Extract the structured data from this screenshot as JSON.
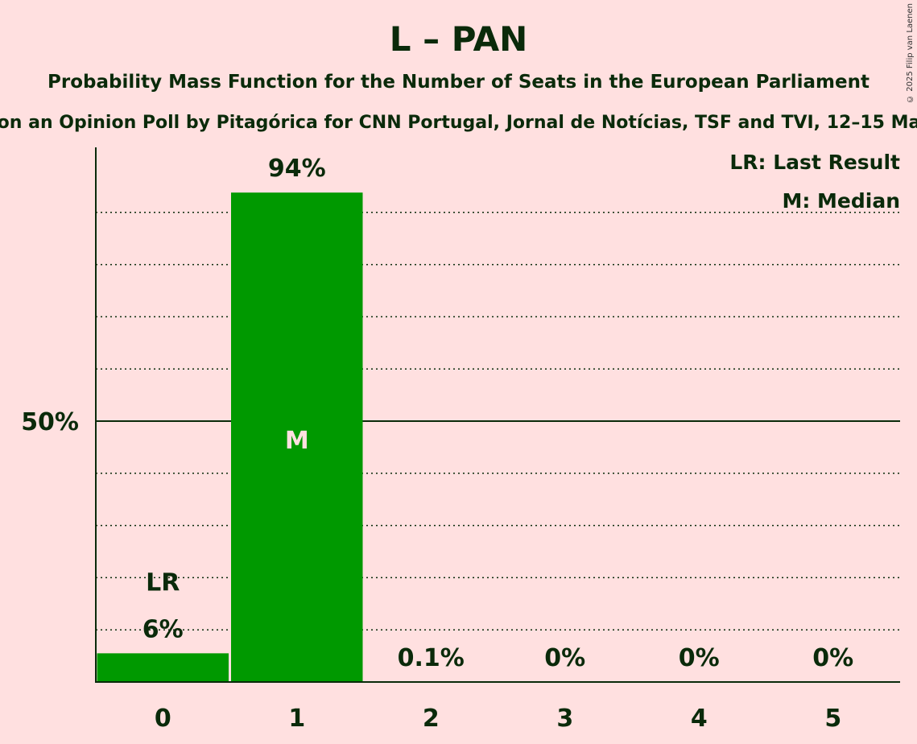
{
  "chart_data": {
    "type": "bar",
    "title": "L – PAN",
    "subtitle": "Probability Mass Function for the Number of Seats in the European Parliament",
    "subtitle2": "on an Opinion Poll by Pitagórica for CNN Portugal, Jornal de Notícias, TSF and TVI, 12–15 Ma",
    "copyright": "© 2025 Filip van Laenen",
    "categories": [
      "0",
      "1",
      "2",
      "3",
      "4",
      "5"
    ],
    "values": [
      5.5,
      93.8,
      0.1,
      0,
      0,
      0
    ],
    "labels": [
      "6%",
      "94%",
      "0.1%",
      "0%",
      "0%",
      "0%"
    ],
    "ylim": [
      0,
      100
    ],
    "ytick_label": "50%",
    "last_result_category": "0",
    "median_category": "1",
    "lr_mark": "LR",
    "median_mark": "M",
    "legend": [
      "LR: Last Result",
      "M: Median"
    ],
    "legend_placement": "top-right",
    "bar_color": "#009900"
  }
}
